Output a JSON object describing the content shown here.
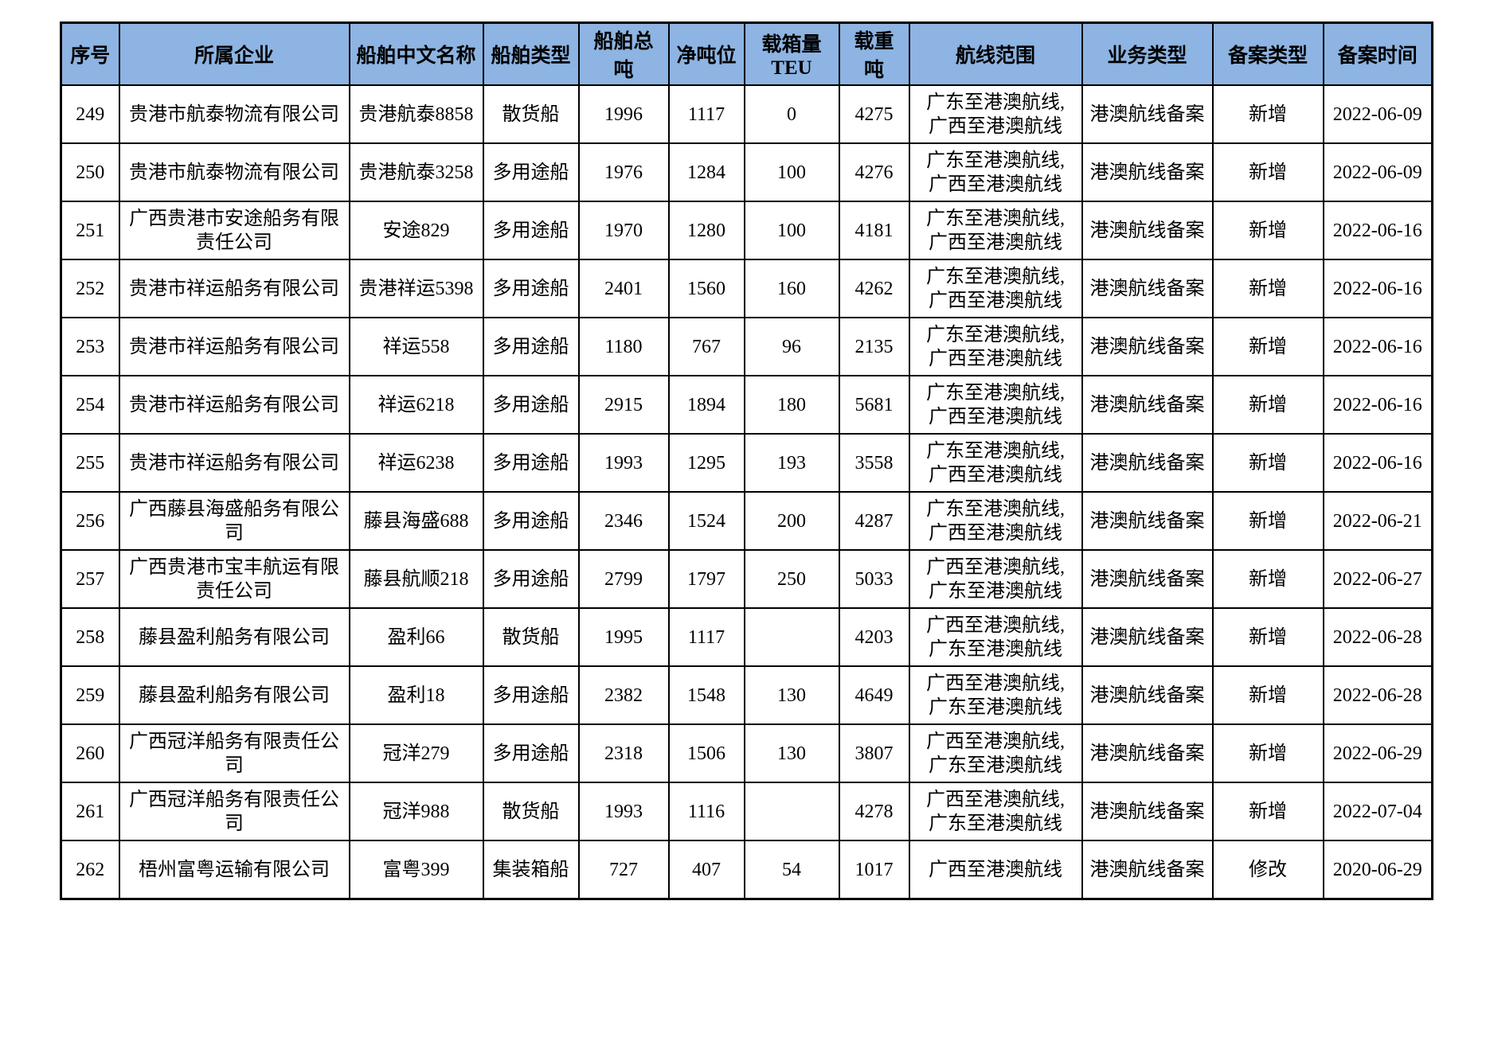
{
  "colors": {
    "header_bg": "#8db4e2",
    "border": "#000000",
    "text": "#000000"
  },
  "table": {
    "headers": [
      "序号",
      "所属企业",
      "船舶中文名称",
      "船舶类型",
      "船舶总吨",
      "净吨位",
      "载箱量TEU",
      "载重吨",
      "航线范围",
      "业务类型",
      "备案类型",
      "备案时间"
    ],
    "rows": [
      [
        "249",
        "贵港市航泰物流有限公司",
        "贵港航泰8858",
        "散货船",
        "1996",
        "1117",
        "0",
        "4275",
        "广东至港澳航线,\n广西至港澳航线",
        "港澳航线备案",
        "新增",
        "2022-06-09"
      ],
      [
        "250",
        "贵港市航泰物流有限公司",
        "贵港航泰3258",
        "多用途船",
        "1976",
        "1284",
        "100",
        "4276",
        "广东至港澳航线,\n广西至港澳航线",
        "港澳航线备案",
        "新增",
        "2022-06-09"
      ],
      [
        "251",
        "广西贵港市安途船务有限责任公司",
        "安途829",
        "多用途船",
        "1970",
        "1280",
        "100",
        "4181",
        "广东至港澳航线,\n广西至港澳航线",
        "港澳航线备案",
        "新增",
        "2022-06-16"
      ],
      [
        "252",
        "贵港市祥运船务有限公司",
        "贵港祥运5398",
        "多用途船",
        "2401",
        "1560",
        "160",
        "4262",
        "广东至港澳航线,\n广西至港澳航线",
        "港澳航线备案",
        "新增",
        "2022-06-16"
      ],
      [
        "253",
        "贵港市祥运船务有限公司",
        "祥运558",
        "多用途船",
        "1180",
        "767",
        "96",
        "2135",
        "广东至港澳航线,\n广西至港澳航线",
        "港澳航线备案",
        "新增",
        "2022-06-16"
      ],
      [
        "254",
        "贵港市祥运船务有限公司",
        "祥运6218",
        "多用途船",
        "2915",
        "1894",
        "180",
        "5681",
        "广东至港澳航线,\n广西至港澳航线",
        "港澳航线备案",
        "新增",
        "2022-06-16"
      ],
      [
        "255",
        "贵港市祥运船务有限公司",
        "祥运6238",
        "多用途船",
        "1993",
        "1295",
        "193",
        "3558",
        "广东至港澳航线,\n广西至港澳航线",
        "港澳航线备案",
        "新增",
        "2022-06-16"
      ],
      [
        "256",
        "广西藤县海盛船务有限公司",
        "藤县海盛688",
        "多用途船",
        "2346",
        "1524",
        "200",
        "4287",
        "广东至港澳航线,\n广西至港澳航线",
        "港澳航线备案",
        "新增",
        "2022-06-21"
      ],
      [
        "257",
        "广西贵港市宝丰航运有限责任公司",
        "藤县航顺218",
        "多用途船",
        "2799",
        "1797",
        "250",
        "5033",
        "广西至港澳航线,\n广东至港澳航线",
        "港澳航线备案",
        "新增",
        "2022-06-27"
      ],
      [
        "258",
        "藤县盈利船务有限公司",
        "盈利66",
        "散货船",
        "1995",
        "1117",
        "",
        "4203",
        "广西至港澳航线,\n广东至港澳航线",
        "港澳航线备案",
        "新增",
        "2022-06-28"
      ],
      [
        "259",
        "藤县盈利船务有限公司",
        "盈利18",
        "多用途船",
        "2382",
        "1548",
        "130",
        "4649",
        "广西至港澳航线,\n广东至港澳航线",
        "港澳航线备案",
        "新增",
        "2022-06-28"
      ],
      [
        "260",
        "广西冠洋船务有限责任公司",
        "冠洋279",
        "多用途船",
        "2318",
        "1506",
        "130",
        "3807",
        "广西至港澳航线,\n广东至港澳航线",
        "港澳航线备案",
        "新增",
        "2022-06-29"
      ],
      [
        "261",
        "广西冠洋船务有限责任公司",
        "冠洋988",
        "散货船",
        "1993",
        "1116",
        "",
        "4278",
        "广西至港澳航线,\n广东至港澳航线",
        "港澳航线备案",
        "新增",
        "2022-07-04"
      ],
      [
        "262",
        "梧州富粤运输有限公司",
        "富粤399",
        "集装箱船",
        "727",
        "407",
        "54",
        "1017",
        "广西至港澳航线",
        "港澳航线备案",
        "修改",
        "2020-06-29"
      ]
    ]
  }
}
